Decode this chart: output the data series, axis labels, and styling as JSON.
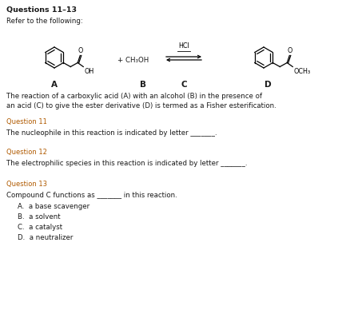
{
  "title": "Questions 11–13",
  "refer_text": "Refer to the following:",
  "desc_line1": "The reaction of a carboxylic acid (A) with an alcohol (B) in the presence of",
  "desc_line2": "an acid (C) to give the ester derivative (D) is termed as a Fisher esterification.",
  "q11_label": "Question 11",
  "q11_text": "The nucleophile in this reaction is indicated by letter _______.",
  "q12_label": "Question 12",
  "q12_text": "The electrophilic species in this reaction is indicated by letter _______.",
  "q13_label": "Question 13",
  "q13_text": "Compound C functions as _______ in this reaction.",
  "options": [
    "A.  a base scavenger",
    "B.  a solvent",
    "C.  a catalyst",
    "D.  a neutralizer"
  ],
  "hcl_text": "HCl",
  "plus_text": "+ CH₃OH",
  "bg_color": "#ffffff",
  "text_color": "#1a1a1a",
  "question_color": "#b05a00",
  "label_A": "A",
  "label_B": "B",
  "label_C": "C",
  "label_D": "D"
}
